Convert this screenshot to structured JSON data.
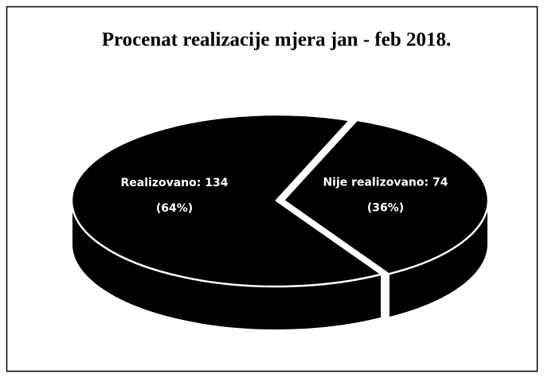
{
  "chart_data": {
    "type": "pie",
    "title": "Procenat realizacije mjera jan - feb 2018.",
    "categories": [
      "Nije realizovano",
      "Realizovano"
    ],
    "values": [
      74,
      134
    ],
    "value_labels": [
      "Nije realizovano: 74",
      "Realizovano: 134"
    ],
    "percent_labels": [
      "(36%)",
      "(64%)"
    ],
    "color": "#000000"
  }
}
